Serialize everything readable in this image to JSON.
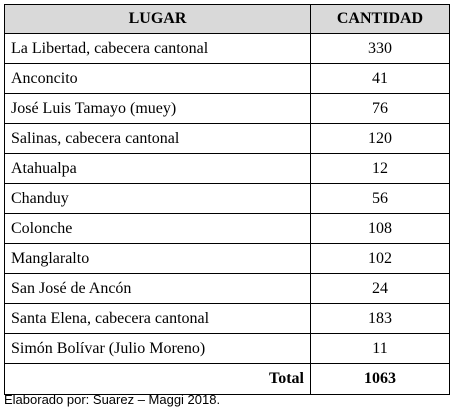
{
  "table": {
    "header": {
      "place": "LUGAR",
      "quantity": "CANTIDAD"
    },
    "rows": [
      {
        "place": "La Libertad, cabecera cantonal",
        "quantity": "330"
      },
      {
        "place": "Anconcito",
        "quantity": "41"
      },
      {
        "place": "José Luis Tamayo (muey)",
        "quantity": "76"
      },
      {
        "place": "Salinas, cabecera cantonal",
        "quantity": "120"
      },
      {
        "place": "Atahualpa",
        "quantity": "12"
      },
      {
        "place": "Chanduy",
        "quantity": "56"
      },
      {
        "place": "Colonche",
        "quantity": "108"
      },
      {
        "place": "Manglaralto",
        "quantity": "102"
      },
      {
        "place": "San José de Ancón",
        "quantity": "24"
      },
      {
        "place": "Santa Elena, cabecera cantonal",
        "quantity": "183"
      },
      {
        "place": "Simón Bolívar (Julio Moreno)",
        "quantity": "11"
      }
    ],
    "total": {
      "label": "Total",
      "quantity": "1063"
    }
  },
  "source_note": "Elaborado por: Suarez – Maggi 2018.",
  "colors": {
    "header_background": "#d9d9d9",
    "border": "#000000",
    "text": "#000000"
  }
}
